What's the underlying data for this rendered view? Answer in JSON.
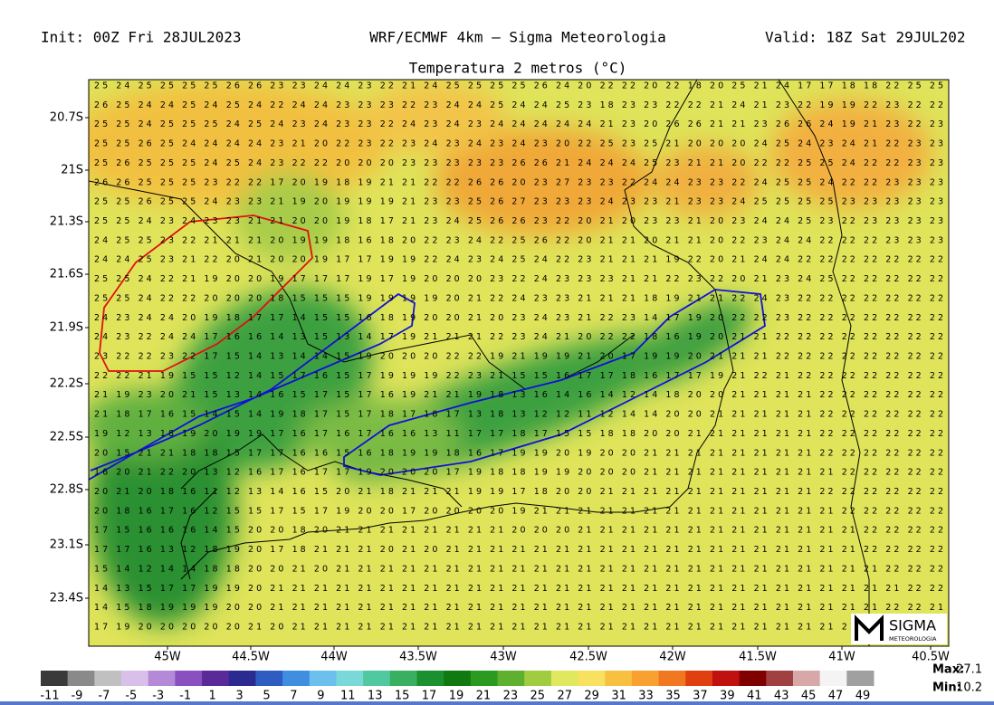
{
  "header": {
    "init": "Init: 00Z Fri 28JUL2023",
    "model": "WRF/ECMWF 4km – Sigma Meteorologia",
    "valid": "Valid: 18Z Sat 29JUL202"
  },
  "map": {
    "title": "Temperatura 2 metros (°C)",
    "lat_labels": [
      "20.7S",
      "21S",
      "21.3S",
      "21.6S",
      "21.9S",
      "22.2S",
      "22.5S",
      "22.8S",
      "23.1S",
      "23.4S"
    ],
    "lon_labels": [
      "45W",
      "44.5W",
      "44W",
      "43.5W",
      "43W",
      "42.5W",
      "42W",
      "41.5W",
      "41W",
      "40.5W"
    ],
    "grid_rows": [
      "25 24 25 25 25 25 26 26 23 23 24 24 23 22 21 24 25 25 25 25 26 24 20 22 22 20 22 18 20 25 21 24 17 17 18 18 22 25 25",
      "26 25 24 24 25 24 25 24 22 24 24 23 23 23 22 23 24 24 25 24 24 25 23 18 23 23 22 22 21 24 21 23 22 19 19 22 23 22 22",
      "25 25 24 25 25 25 24 25 24 23 24 23 23 22 24 23 24 23 24 24 24 24 24 21 23 20 26 26 21 21 23 26 26 24 19 21 23 22 23",
      "25 25 26 25 24 24 24 24 23 21 20 22 23 22 23 24 23 24 23 24 23 20 22 25 23 25 21 20 20 20 24 25 24 23 24 21 22 23 23",
      "25 26 25 25 25 24 25 24 23 22 22 20 20 20 23 23 23 23 23 26 26 21 24 24 24 25 23 21 21 20 22 22 25 25 24 22 22 23 23",
      "26 26 25 25 25 23 22 22 17 20 19 18 19 21 21 22 22 26 26 20 23 27 23 23 22 24 24 23 23 22 24 25 25 24 22 22 23 23 23",
      "25 25 26 25 25 24 23 23 21 19 20 19 19 19 21 23 23 25 26 27 23 23 23 24 23 23 21 23 23 24 25 25 25 25 23 23 23 23 23",
      "25 25 24 23 24 23 23 21 21 20 20 19 18 17 21 23 24 25 26 26 23 22 20 21 20 23 23 21 20 23 24 24 25 23 22 23 23 23 23",
      "24 25 25 23 22 21 21 21 20 19 19 18 16 18 20 22 23 24 22 25 26 22 20 21 21 20 21 21 20 22 23 24 24 22 22 22 23 23 23",
      "24 24 25 23 21 22 20 21 20 20 19 17 17 19 19 22 24 23 24 25 24 22 23 21 21 21 19 22 20 21 24 24 22 22 22 22 22 22 22",
      "25 25 24 22 21 19 20 20 19 17 17 17 19 17 19 20 20 20 23 22 24 23 23 23 21 21 22 23 22 20 21 23 24 25 22 22 22 22 22",
      "25 25 24 22 22 20 20 20 18 15 15 15 19 19 19 19 20 21 22 24 23 23 21 21 21 18 19 21 21 22 24 23 22 22 22 22 22 22 22",
      "24 23 24 24 20 19 18 17 17 14 15 15 16 18 19 20 20 21 20 23 24 23 21 22 23 14 17 19 20 22 22 23 22 22 22 22 22 22 22",
      "24 23 22 24 24 17 16 16 14 13 15 13 14 17 19 21 21 21 22 23 24 21 20 22 22 18 16 19 20 21 21 22 22 22 22 22 22 22 22",
      "23 22 22 23 22 17 15 14 13 14 14 15 19 20 20 20 22 22 19 21 19 19 21 20 17 19 19 20 21 21 21 22 22 22 22 22 22 22 22",
      "22 22 21 19 15 15 12 14 15 17 16 15 17 19 19 19 22 23 21 15 15 16 17 17 18 16 17 17 19 21 22 21 22 22 22 22 22 22 22",
      "21 19 23 20 21 15 13 14 16 15 17 15 17 16 19 21 21 19 18 13 16 14 16 14 12 14 18 20 20 21 21 21 21 22 22 22 22 22 22",
      "21 18 17 16 15 14 15 14 19 18 17 15 17 18 17 18 17 13 18 13 12 12 11 12 14 14 20 20 21 21 21 21 21 22 22 22 22 22 22",
      "19 12 13 18 19 20 19 19 17 16 17 16 17 16 16 13 11 17 17 18 17 15 15 18 18 20 20 21 21 21 21 21 21 22 22 22 22 22 22",
      "20 15 21 21 18 18 15 17 17 16 16 15 16 18 19 19 18 16 17 19 19 20 19 20 20 21 21 21 21 21 21 21 21 22 22 22 22 22 22",
      "16 20 21 22 20 13 12 16 17 16 17 17 19 20 20 20 17 19 18 18 19 19 20 20 20 21 21 21 21 21 21 21 21 21 22 22 22 22 22",
      "20 21 20 18 16 11 12 13 14 16 15 20 21 18 21 21 21 19 19 17 18 20 20 21 21 21 21 21 21 21 21 21 21 22 22 22 22 22 22",
      "20 18 16 17 16 12 15 15 17 15 17 19 20 20 17 20 20 20 20 19 21 21 21 21 21 21 21 21 21 21 21 21 21 21 22 22 22 22 22",
      "17 15 16 16 16 14 15 20 20 18 20 21 21 21 21 21 21 21 21 20 20 20 21 21 21 21 21 21 21 21 21 21 21 21 21 22 22 22 22",
      "17 17 16 13 12 18 19 20 17 18 21 21 21 20 21 20 21 21 21 21 21 21 21 21 21 21 21 21 21 21 21 21 21 21 21 22 22 22 22",
      "15 14 12 14 14 18 18 20 20 21 20 21 21 21 21 21 21 21 21 21 21 21 21 21 21 21 21 21 21 21 21 21 21 21 21 21 22 22 22",
      "14 13 15 17 17 19 19 20 21 21 21 21 21 21 21 21 21 21 21 21 21 21 21 21 21 21 21 21 21 21 21 21 21 21 21 21 21 22 22",
      "14 15 18 19 19 19 20 20 21 21 21 21 21 21 21 21 21 21 21 21 21 21 21 21 21 21 21 21 21 21 21 21 21 21 21 21 22 22 21",
      "17 19 20 20 20 20 20 21 20 21 21 21 21 21 21 21 21 21 21 21 21 21 21 21 21 21 21 21 21 21 21 21 21 21 21 21 21 21 21"
    ]
  },
  "colorbar": {
    "labels": [
      -11,
      -9,
      -7,
      -5,
      -3,
      -1,
      1,
      3,
      5,
      7,
      9,
      11,
      13,
      15,
      17,
      19,
      21,
      23,
      25,
      27,
      29,
      31,
      33,
      35,
      37,
      39,
      41,
      43,
      45,
      47,
      49
    ],
    "colors": [
      "#3a3a3a",
      "#8a8a8a",
      "#c0c0c0",
      "#d8c0ea",
      "#b48ad8",
      "#8a50c0",
      "#5a2a98",
      "#2a2a90",
      "#2f5cc0",
      "#3f8ee0",
      "#6cc0ee",
      "#7ad8d8",
      "#50c8a0",
      "#38b060",
      "#1a9030",
      "#107a10",
      "#2a9a20",
      "#60b030",
      "#a0cc40",
      "#e0e860",
      "#f8e060",
      "#f8c040",
      "#f8a030",
      "#f07820",
      "#e04010",
      "#c01010",
      "#800000",
      "#a04040",
      "#d8a8a8",
      "#f4f4f4",
      "#a0a0a0"
    ]
  },
  "stats": {
    "max_label": "Max:",
    "max": "27.1",
    "min_label": "Min:",
    "min": "10.2"
  },
  "logo": {
    "text": "SIGMA",
    "subtext": "METEOROLOGIA"
  }
}
